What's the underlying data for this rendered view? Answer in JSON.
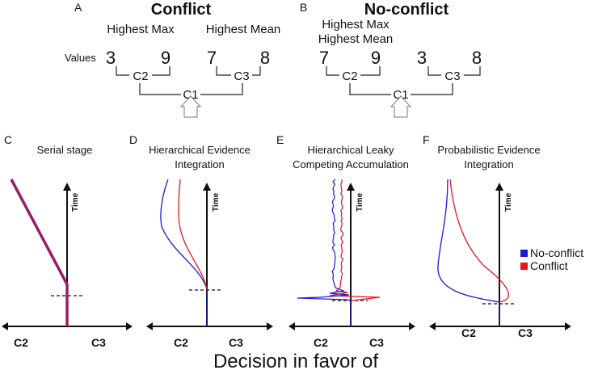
{
  "panel_a": {
    "letter": "A",
    "title": "Conflict",
    "title_color": "#e31a1c",
    "left_label": "Highest Max",
    "right_label": "Highest Mean",
    "values_label": "Values",
    "values": [
      "3",
      "9",
      "7",
      "8"
    ],
    "nodes": [
      "C2",
      "C3",
      "C1"
    ]
  },
  "panel_b": {
    "letter": "B",
    "title": "No-conflict",
    "title_color": "#1f78c8",
    "label_line1": "Highest Max",
    "label_line2": "Highest Mean",
    "values": [
      "7",
      "9",
      "3",
      "8"
    ],
    "nodes": [
      "C2",
      "C3",
      "C1"
    ]
  },
  "panels": [
    {
      "letter": "C",
      "title_lines": [
        "Serial stage"
      ]
    },
    {
      "letter": "D",
      "title_lines": [
        "Hierarchical Evidence",
        "Integration"
      ]
    },
    {
      "letter": "E",
      "title_lines": [
        "Hierarchical Leaky",
        "Competing Accumulation"
      ]
    },
    {
      "letter": "F",
      "title_lines": [
        "Probabilistic Evidence",
        "Integration"
      ]
    }
  ],
  "axis": {
    "time_label": "Time",
    "left_label": "C2",
    "right_label": "C3",
    "x_title": "Decision in favor of"
  },
  "legend": [
    {
      "label": "No-conflict",
      "color": "#1a1adc"
    },
    {
      "label": "Conflict",
      "color": "#e8141b"
    }
  ],
  "colors": {
    "serial": "#9b1b6a",
    "no_conflict": "#1a1adc",
    "conflict": "#e8141b"
  }
}
